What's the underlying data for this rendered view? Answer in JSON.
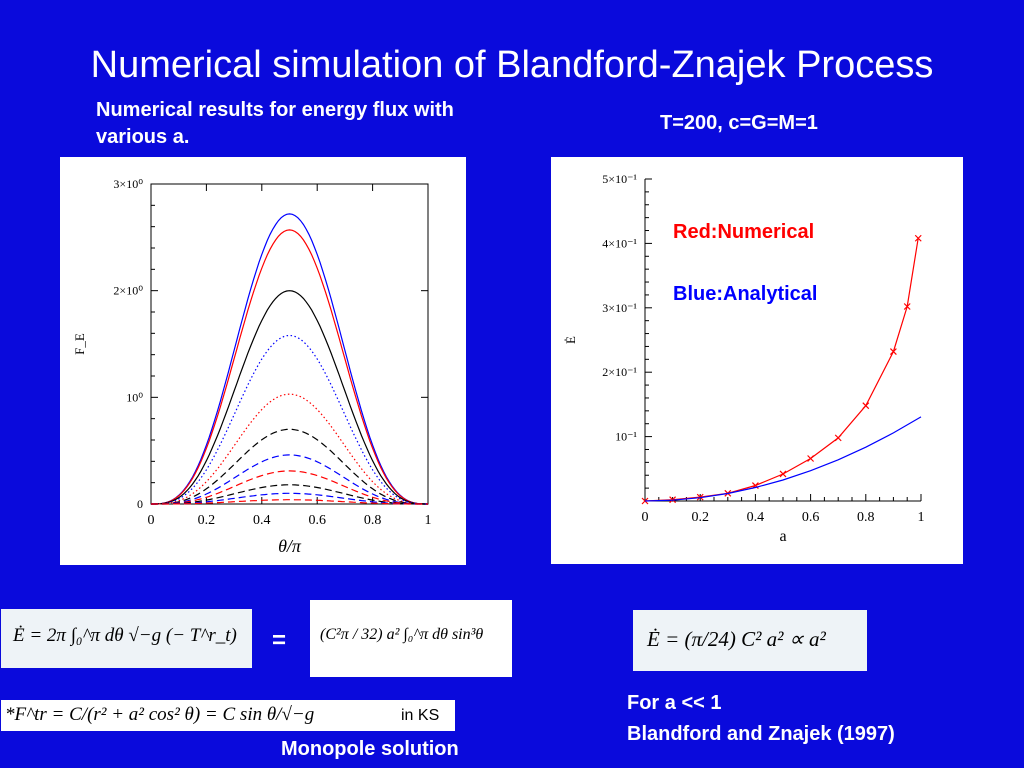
{
  "slide": {
    "title": "Numerical simulation of Blandford-Znajek Process",
    "caption_left": "Numerical results for energy flux with various a.",
    "params": "T=200, c=G=M=1",
    "equals_sign": "=",
    "formula_left": "Ė = 2π ∫₀^π dθ √−g (− T^r_t)",
    "formula_middle": "(C²π / 32) a² ∫₀^π dθ sin³θ",
    "formula_right": "Ė = (π/24) C² a² ∝ a²",
    "formula_footnote": "*F^tr = C/(r² + a² cos² θ) = C sin θ/√−g",
    "formula_footnote_suffix": "in KS",
    "monopole_label": "Monopole solution",
    "note_line1": "For a << 1",
    "note_line2": "Blandford and Znajek (1997)"
  },
  "chart_data": [
    {
      "type": "line",
      "title": "",
      "xlabel": "θ/π",
      "ylabel": "F_E",
      "xlim": [
        0,
        1
      ],
      "ylim": [
        0,
        3
      ],
      "x_ticks": [
        "0",
        "0.2",
        "0.4",
        "0.6",
        "0.8",
        "1"
      ],
      "y_ticks": [
        "0",
        "10⁰",
        "2×10⁰",
        "3×10⁰"
      ],
      "series": [
        {
          "color": "#0000ff",
          "style": "solid",
          "peak": 2.72
        },
        {
          "color": "#ff0000",
          "style": "solid",
          "peak": 2.57
        },
        {
          "color": "#000000",
          "style": "solid",
          "peak": 2.0
        },
        {
          "color": "#0000ff",
          "style": "dotted",
          "peak": 1.58
        },
        {
          "color": "#ff0000",
          "style": "dotted",
          "peak": 1.03
        },
        {
          "color": "#000000",
          "style": "dashed",
          "peak": 0.7
        },
        {
          "color": "#0000ff",
          "style": "dashed",
          "peak": 0.46
        },
        {
          "color": "#ff0000",
          "style": "dashed",
          "peak": 0.31
        },
        {
          "color": "#000000",
          "style": "dashed",
          "peak": 0.18
        },
        {
          "color": "#0000ff",
          "style": "dashed",
          "peak": 0.1
        },
        {
          "color": "#ff0000",
          "style": "dashed",
          "peak": 0.04
        }
      ]
    },
    {
      "type": "line",
      "title": "",
      "xlabel": "a",
      "ylabel": "Ė",
      "xlim": [
        0,
        1
      ],
      "ylim": [
        0,
        0.5
      ],
      "x_ticks": [
        "0",
        "0.2",
        "0.4",
        "0.6",
        "0.8",
        "1"
      ],
      "y_ticks": [
        "10⁻¹",
        "2×10⁻¹",
        "3×10⁻¹",
        "4×10⁻¹",
        "5×10⁻¹"
      ],
      "legend": [
        "Red:Numerical",
        "Blue:Analytical"
      ],
      "series": [
        {
          "name": "Red:Numerical",
          "color": "#ff0000",
          "marker": "x",
          "x": [
            0,
            0.1,
            0.2,
            0.3,
            0.4,
            0.5,
            0.6,
            0.7,
            0.8,
            0.9,
            0.95,
            0.99
          ],
          "y": [
            0,
            0.002,
            0.006,
            0.012,
            0.024,
            0.042,
            0.066,
            0.098,
            0.148,
            0.232,
            0.302,
            0.408
          ]
        },
        {
          "name": "Blue:Analytical",
          "color": "#0000ff",
          "x": [
            0,
            0.1,
            0.2,
            0.3,
            0.4,
            0.5,
            0.6,
            0.7,
            0.8,
            0.9,
            1.0
          ],
          "y": [
            0,
            0.0013,
            0.0052,
            0.0117,
            0.0209,
            0.0326,
            0.047,
            0.064,
            0.0836,
            0.1058,
            0.1306
          ]
        }
      ]
    }
  ]
}
